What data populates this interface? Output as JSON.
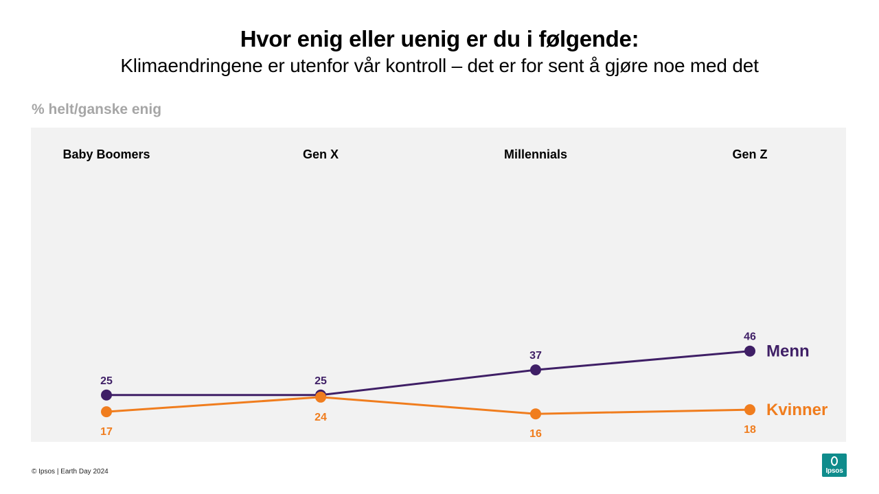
{
  "header": {
    "title": "Hvor enig eller uenig er du i følgende:",
    "subtitle": "Klimaendringene er utenfor vår kontroll – det er for sent å gjøre noe med det"
  },
  "chart_unit_label": "% helt/ganske enig",
  "chart_data": {
    "type": "line",
    "categories": [
      "Baby Boomers",
      "Gen X",
      "Millennials",
      "Gen Z"
    ],
    "ylim": [
      0,
      100
    ],
    "grid": false,
    "legend": "right, at line ends",
    "series": [
      {
        "name": "Menn",
        "values": [
          25,
          25,
          37,
          46
        ],
        "color": "#3f1f66"
      },
      {
        "name": "Kvinner",
        "values": [
          17,
          24,
          16,
          18
        ],
        "color": "#f07d1e"
      }
    ]
  },
  "footer": {
    "source": "© Ipsos | Earth Day 2024"
  },
  "logo": {
    "text": "Ipsos",
    "color": "#0f8c8c"
  }
}
